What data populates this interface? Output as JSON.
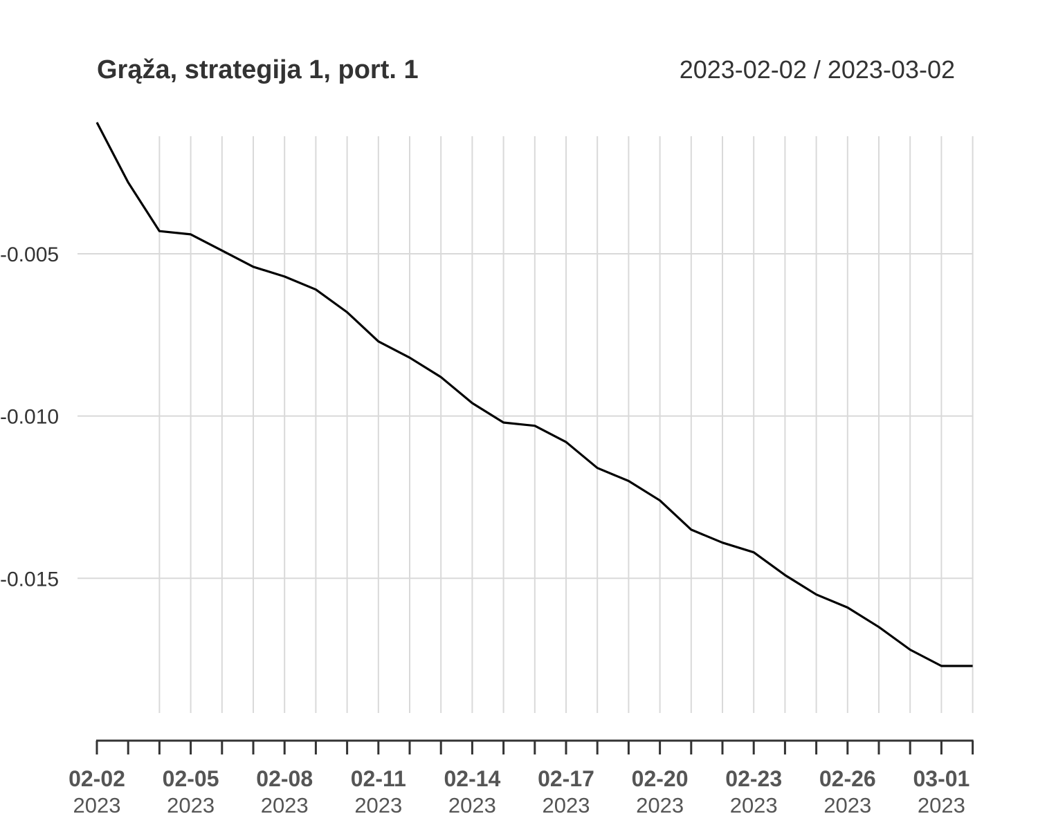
{
  "chart_data": {
    "type": "line",
    "title": "Grąža, strategija 1, port. 1",
    "date_range_label": "2023-02-02 / 2023-03-02",
    "xlabel": "",
    "ylabel": "",
    "grid": true,
    "series": [
      {
        "x": [
          "2023-02-02",
          "2023-02-03",
          "2023-02-04",
          "2023-02-05",
          "2023-02-06",
          "2023-02-07",
          "2023-02-08",
          "2023-02-09",
          "2023-02-10",
          "2023-02-11",
          "2023-02-12",
          "2023-02-13",
          "2023-02-14",
          "2023-02-15",
          "2023-02-16",
          "2023-02-17",
          "2023-02-18",
          "2023-02-19",
          "2023-02-20",
          "2023-02-21",
          "2023-02-22",
          "2023-02-23",
          "2023-02-24",
          "2023-02-25",
          "2023-02-26",
          "2023-02-27",
          "2023-02-28",
          "2023-03-01",
          "2023-03-02"
        ],
        "values": [
          -0.00095,
          -0.0028,
          -0.0043,
          -0.0044,
          -0.0049,
          -0.0054,
          -0.0057,
          -0.0061,
          -0.0068,
          -0.0077,
          -0.0082,
          -0.0088,
          -0.0096,
          -0.0102,
          -0.0103,
          -0.0108,
          -0.0116,
          -0.012,
          -0.0126,
          -0.0135,
          -0.0139,
          -0.0142,
          -0.0149,
          -0.0155,
          -0.0159,
          -0.0165,
          -0.0172,
          -0.0177,
          -0.0177
        ]
      }
    ],
    "ylim": [
      -0.01915,
      -0.00095
    ],
    "yticks": [
      {
        "value": -0.005,
        "label": "-0.005"
      },
      {
        "value": -0.01,
        "label": "-0.010"
      },
      {
        "value": -0.015,
        "label": "-0.015"
      }
    ],
    "xticks": [
      {
        "index": 0,
        "line1": "02-02",
        "line2": "2023"
      },
      {
        "index": 3,
        "line1": "02-05",
        "line2": "2023"
      },
      {
        "index": 6,
        "line1": "02-08",
        "line2": "2023"
      },
      {
        "index": 9,
        "line1": "02-11",
        "line2": "2023"
      },
      {
        "index": 12,
        "line1": "02-14",
        "line2": "2023"
      },
      {
        "index": 15,
        "line1": "02-17",
        "line2": "2023"
      },
      {
        "index": 18,
        "line1": "02-20",
        "line2": "2023"
      },
      {
        "index": 21,
        "line1": "02-23",
        "line2": "2023"
      },
      {
        "index": 24,
        "line1": "02-26",
        "line2": "2023"
      },
      {
        "index": 27,
        "line1": "03-01",
        "line2": "2023"
      }
    ],
    "colors": {
      "line": "#000000",
      "grid": "#d9d9d9",
      "axis": "#333333"
    }
  }
}
